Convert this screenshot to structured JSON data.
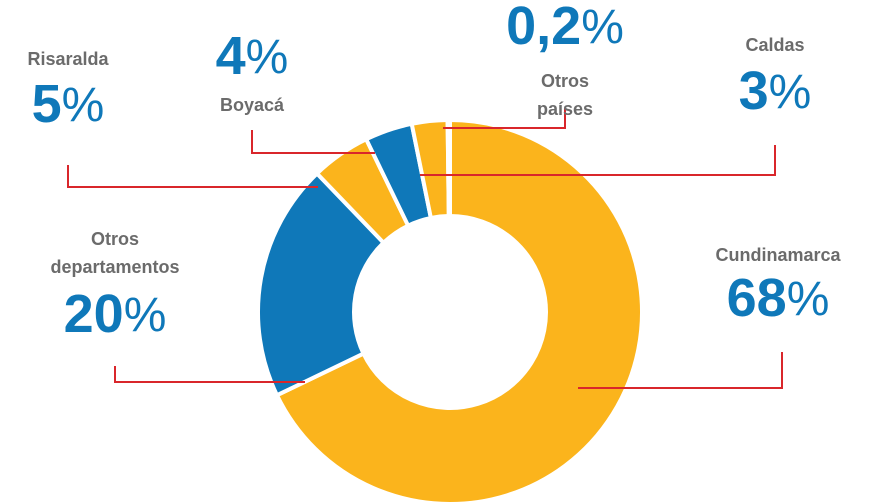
{
  "chart_data": {
    "type": "donut",
    "categories": [
      "Cundinamarca",
      "Otros departamentos",
      "Risaralda",
      "Boyacá",
      "Caldas",
      "Otros países"
    ],
    "values": [
      68,
      20,
      5,
      4,
      3,
      0.2
    ],
    "value_labels": [
      "68",
      "20",
      "5",
      "4",
      "3",
      "0,2"
    ],
    "unit": "%",
    "colors": [
      "#fbb41c",
      "#0f78b9",
      "#fbb41c",
      "#0f78b9",
      "#fbb41c",
      "#0f78b9"
    ]
  }
}
